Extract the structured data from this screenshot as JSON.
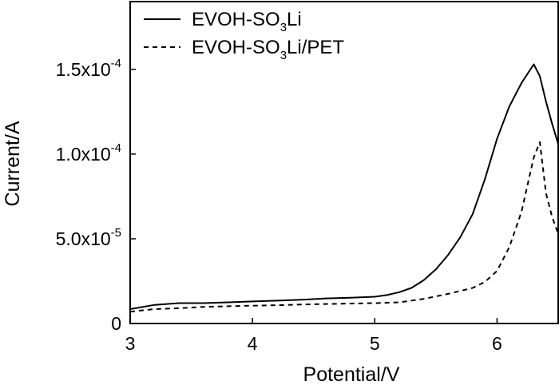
{
  "chart_data": {
    "type": "line",
    "title": "",
    "xlabel": "Potential/V",
    "ylabel": "Current/A",
    "xlim": [
      3.0,
      6.5
    ],
    "ylim": [
      0,
      0.00019
    ],
    "grid": false,
    "legend_position": "top-left",
    "x_ticks": [
      {
        "value": 3,
        "label": "3"
      },
      {
        "value": 4,
        "label": "4"
      },
      {
        "value": 5,
        "label": "5"
      },
      {
        "value": 6,
        "label": "6"
      }
    ],
    "y_ticks": [
      {
        "value": 0,
        "mantissa": "0",
        "exponent": ""
      },
      {
        "value": 5e-05,
        "mantissa": "5.0x10",
        "exponent": "-5"
      },
      {
        "value": 0.0001,
        "mantissa": "1.0x10",
        "exponent": "-4"
      },
      {
        "value": 0.00015,
        "mantissa": "1.5x10",
        "exponent": "-4"
      }
    ],
    "series": [
      {
        "name": "EVOH-SO3Li",
        "legend": {
          "base": "EVOH-SO",
          "sub": "3",
          "rest": "Li"
        },
        "style": "solid",
        "color": "#000000",
        "x": [
          3.0,
          3.2,
          3.4,
          3.6,
          3.8,
          4.0,
          4.2,
          4.4,
          4.6,
          4.8,
          5.0,
          5.1,
          5.2,
          5.3,
          5.4,
          5.5,
          5.6,
          5.7,
          5.8,
          5.9,
          6.0,
          6.1,
          6.2,
          6.3,
          6.35,
          6.4,
          6.45,
          6.5
        ],
        "y": [
          8.5e-06,
          1.1e-05,
          1.2e-05,
          1.2e-05,
          1.25e-05,
          1.3e-05,
          1.35e-05,
          1.4e-05,
          1.48e-05,
          1.52e-05,
          1.58e-05,
          1.68e-05,
          1.85e-05,
          2.1e-05,
          2.55e-05,
          3.2e-05,
          4.05e-05,
          5.1e-05,
          6.45e-05,
          8.5e-05,
          0.000109,
          0.000128,
          0.000142,
          0.000153,
          0.000146,
          0.000131,
          0.000118,
          0.000106
        ]
      },
      {
        "name": "EVOH-SO3Li/PET",
        "legend": {
          "base": "EVOH-SO",
          "sub": "3",
          "rest": "Li/PET"
        },
        "style": "dashed",
        "color": "#000000",
        "x": [
          3.0,
          3.2,
          3.4,
          3.6,
          3.8,
          4.0,
          4.2,
          4.4,
          4.6,
          4.8,
          5.0,
          5.2,
          5.4,
          5.6,
          5.8,
          5.9,
          6.0,
          6.1,
          6.2,
          6.25,
          6.3,
          6.35,
          6.4,
          6.45,
          6.5
        ],
        "y": [
          7e-06,
          8.5e-06,
          9e-06,
          9.8e-06,
          1.02e-05,
          1.05e-05,
          1.08e-05,
          1.12e-05,
          1.15e-05,
          1.18e-05,
          1.2e-05,
          1.25e-05,
          1.45e-05,
          1.75e-05,
          2.1e-05,
          2.45e-05,
          3.1e-05,
          4.5e-05,
          6.6e-05,
          8.2e-05,
          9.8e-05,
          0.000107,
          7.7e-05,
          6.3e-05,
          5.3e-05
        ]
      }
    ]
  }
}
